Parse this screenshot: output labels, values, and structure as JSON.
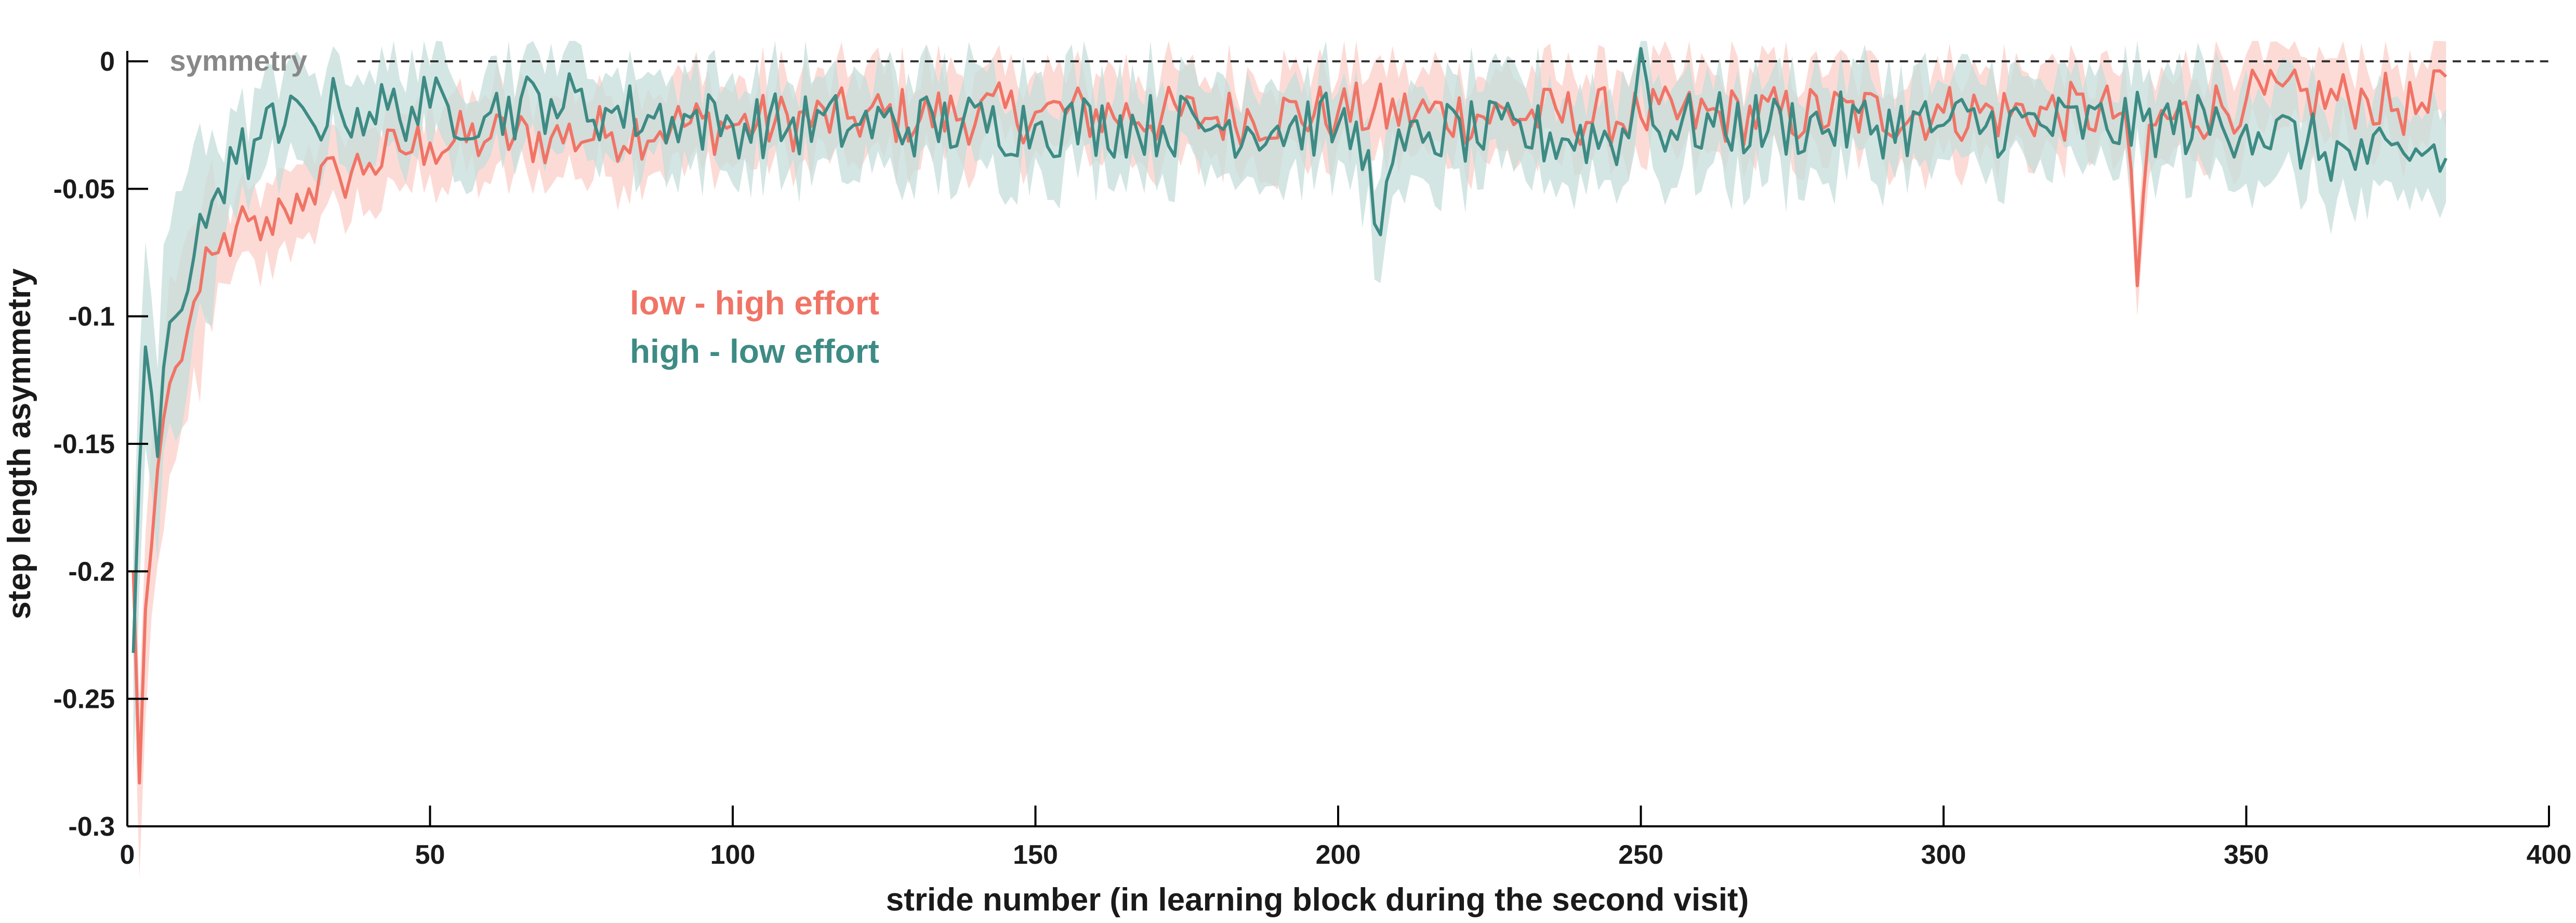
{
  "chart_data": {
    "type": "line",
    "title": "",
    "xlabel": "stride number (in learning block during the second visit)",
    "ylabel": "step length asymmetry",
    "xlim": [
      0,
      400
    ],
    "ylim": [
      -0.3,
      0
    ],
    "xticks": [
      0,
      50,
      100,
      150,
      200,
      250,
      300,
      350,
      400
    ],
    "yticks": [
      0,
      -0.05,
      -0.1,
      -0.15,
      -0.2,
      -0.25,
      -0.3
    ],
    "xtick_labels": [
      "0",
      "50",
      "100",
      "150",
      "200",
      "250",
      "300",
      "350",
      "400"
    ],
    "ytick_labels": [
      "0",
      "-0.05",
      "-0.1",
      "-0.15",
      "-0.2",
      "-0.25",
      "-0.3"
    ],
    "grid": false,
    "legend_position": "upper-left (inside plot)",
    "reference_line": {
      "y": 0,
      "label": "symmetry",
      "style": "dashed",
      "color": "#333333"
    },
    "series": [
      {
        "name": "low - high effort",
        "color": "#f07466",
        "band_color": "#fbcfc8",
        "knots": [
          [
            1,
            -0.2
          ],
          [
            2,
            -0.283
          ],
          [
            3,
            -0.215
          ],
          [
            4,
            -0.19
          ],
          [
            5,
            -0.16
          ],
          [
            6,
            -0.14
          ],
          [
            8,
            -0.12
          ],
          [
            10,
            -0.105
          ],
          [
            12,
            -0.09
          ],
          [
            15,
            -0.075
          ],
          [
            18,
            -0.065
          ],
          [
            22,
            -0.07
          ],
          [
            26,
            -0.058
          ],
          [
            30,
            -0.05
          ],
          [
            35,
            -0.045
          ],
          [
            40,
            -0.04
          ],
          [
            45,
            -0.035
          ],
          [
            50,
            -0.032
          ],
          [
            60,
            -0.03
          ],
          [
            70,
            -0.03
          ],
          [
            80,
            -0.028
          ],
          [
            90,
            -0.025
          ],
          [
            100,
            -0.025
          ],
          [
            120,
            -0.022
          ],
          [
            150,
            -0.02
          ],
          [
            180,
            -0.022
          ],
          [
            200,
            -0.02
          ],
          [
            250,
            -0.022
          ],
          [
            300,
            -0.02
          ],
          [
            330,
            -0.02
          ],
          [
            332,
            -0.088
          ],
          [
            334,
            -0.025
          ],
          [
            350,
            -0.015
          ],
          [
            370,
            -0.015
          ],
          [
            380,
            -0.02
          ],
          [
            383,
            -0.006
          ]
        ],
        "noise_amp": 0.012,
        "band_half_width": 0.016
      },
      {
        "name": "high - low effort",
        "color": "#3d8b84",
        "band_color": "#c5dedb",
        "knots": [
          [
            1,
            -0.232
          ],
          [
            2,
            -0.16
          ],
          [
            3,
            -0.112
          ],
          [
            4,
            -0.13
          ],
          [
            5,
            -0.155
          ],
          [
            6,
            -0.12
          ],
          [
            8,
            -0.1
          ],
          [
            10,
            -0.09
          ],
          [
            12,
            -0.06
          ],
          [
            15,
            -0.05
          ],
          [
            18,
            -0.04
          ],
          [
            22,
            -0.03
          ],
          [
            26,
            -0.025
          ],
          [
            30,
            -0.022
          ],
          [
            35,
            -0.018
          ],
          [
            40,
            -0.02
          ],
          [
            50,
            -0.018
          ],
          [
            60,
            -0.02
          ],
          [
            70,
            -0.015
          ],
          [
            80,
            -0.02
          ],
          [
            90,
            -0.022
          ],
          [
            100,
            -0.025
          ],
          [
            120,
            -0.025
          ],
          [
            150,
            -0.025
          ],
          [
            180,
            -0.025
          ],
          [
            200,
            -0.025
          ],
          [
            205,
            -0.035
          ],
          [
            207,
            -0.068
          ],
          [
            209,
            -0.04
          ],
          [
            215,
            -0.028
          ],
          [
            248,
            -0.03
          ],
          [
            250,
            0.005
          ],
          [
            252,
            -0.025
          ],
          [
            300,
            -0.025
          ],
          [
            350,
            -0.025
          ],
          [
            370,
            -0.04
          ],
          [
            380,
            -0.035
          ],
          [
            383,
            -0.038
          ]
        ],
        "noise_amp": 0.013,
        "band_half_width": 0.018
      }
    ]
  },
  "legend": {
    "items": [
      {
        "label": "low - high effort",
        "color": "#f07466"
      },
      {
        "label": "high - low effort",
        "color": "#3d8b84"
      }
    ]
  },
  "reference": {
    "label": "symmetry"
  }
}
